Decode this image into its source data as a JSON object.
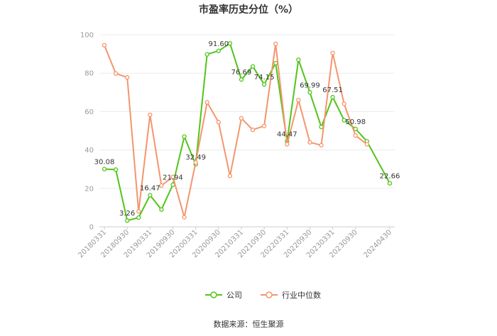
{
  "chart_data": {
    "type": "line",
    "title": "市盈率历史分位（%）",
    "xlabel": "",
    "ylabel": "",
    "ylim": [
      0,
      100
    ],
    "yticks": [
      0,
      20,
      40,
      60,
      80,
      100
    ],
    "grid": true,
    "legend_position": "bottom",
    "x": [
      "20180331",
      "20180630",
      "20180930",
      "20181231",
      "20190331",
      "20190630",
      "20190930",
      "20191231",
      "20200331",
      "20200630",
      "20200930",
      "20201231",
      "20210331",
      "20210630",
      "20210930",
      "20211231",
      "20220331",
      "20220630",
      "20220930",
      "20221231",
      "20230331",
      "20230630",
      "20230930",
      "20231231",
      "20240331",
      "20240430"
    ],
    "tick_labels": [
      "20180331",
      "20180930",
      "20190331",
      "20190930",
      "20200331",
      "20200930",
      "20210331",
      "20210930",
      "20220331",
      "20220930",
      "20230331",
      "20230930",
      "20240430"
    ],
    "series": [
      {
        "name": "公司",
        "color": "#52c41a",
        "values": [
          30.08,
          29.8,
          3.26,
          4.8,
          16.47,
          9.0,
          21.94,
          47.0,
          32.49,
          89.8,
          91.6,
          95.5,
          76.69,
          83.5,
          74.15,
          85.2,
          44.47,
          87.0,
          69.99,
          52.0,
          67.51,
          55.5,
          50.98,
          44.5,
          null,
          22.66
        ],
        "labels": {
          "0": "30.08",
          "2": "3.26",
          "4": "16.47",
          "6": "21.94",
          "8": "32.49",
          "10": "91.60",
          "12": "76.69",
          "14": "74.15",
          "16": "44.47",
          "18": "69.99",
          "20": "67.51",
          "22": "50.98",
          "25": "22.66"
        }
      },
      {
        "name": "行业中位数",
        "color": "#f4956c",
        "values": [
          94.5,
          79.8,
          77.8,
          8.0,
          58.3,
          21.5,
          26.0,
          5.0,
          33.5,
          64.8,
          54.5,
          26.5,
          56.5,
          50.5,
          52.5,
          95.3,
          43.0,
          66.0,
          44.0,
          42.5,
          90.5,
          64.0,
          47.5,
          43.0,
          null,
          null
        ]
      }
    ],
    "source": "数据来源：恒生聚源"
  }
}
